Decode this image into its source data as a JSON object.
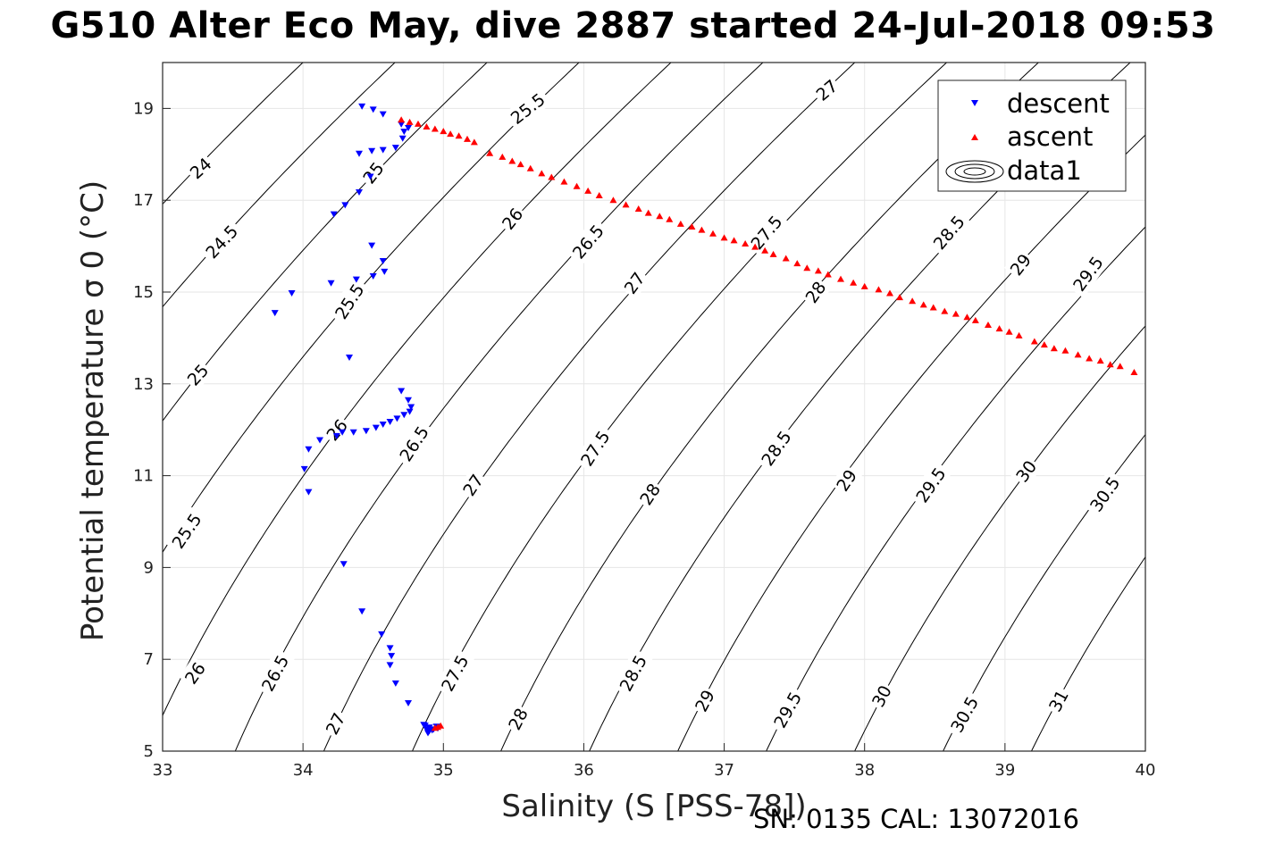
{
  "header": {
    "title": "G510 Alter Eco May, dive 2887 started 24-Jul-2018 09:53"
  },
  "footer": {
    "text": "SN: 0135  CAL: 13072016"
  },
  "chart_data": {
    "type": "scatter",
    "title": "G510 Alter Eco May, dive 2887 started 24-Jul-2018 09:53",
    "xlabel": "Salinity (S [PSS-78])",
    "ylabel": "Potential temperature σ 0 (°C)",
    "xlim": [
      33,
      40
    ],
    "ylim": [
      5,
      20
    ],
    "x_ticks": [
      "33",
      "34",
      "35",
      "36",
      "37",
      "38",
      "39",
      "40"
    ],
    "y_ticks": [
      "5",
      "7",
      "9",
      "11",
      "13",
      "15",
      "17",
      "19"
    ],
    "grid": true,
    "legend_position": "top-right",
    "series": [
      {
        "name": "descent",
        "color": "#0000ff",
        "marker": "triangle-down",
        "points": [
          [
            34.42,
            19.05
          ],
          [
            34.5,
            18.98
          ],
          [
            34.57,
            18.88
          ],
          [
            34.4,
            18.02
          ],
          [
            34.49,
            18.08
          ],
          [
            34.57,
            18.1
          ],
          [
            34.66,
            18.15
          ],
          [
            34.71,
            18.35
          ],
          [
            34.72,
            18.5
          ],
          [
            34.75,
            18.58
          ],
          [
            34.7,
            18.66
          ],
          [
            34.48,
            17.52
          ],
          [
            34.4,
            17.18
          ],
          [
            34.3,
            16.9
          ],
          [
            34.22,
            16.7
          ],
          [
            34.49,
            16.02
          ],
          [
            34.57,
            15.68
          ],
          [
            34.58,
            15.45
          ],
          [
            34.5,
            15.35
          ],
          [
            34.38,
            15.28
          ],
          [
            34.2,
            15.2
          ],
          [
            33.92,
            14.98
          ],
          [
            33.8,
            14.55
          ],
          [
            34.33,
            13.58
          ],
          [
            34.7,
            12.85
          ],
          [
            34.75,
            12.65
          ],
          [
            34.77,
            12.5
          ],
          [
            34.76,
            12.4
          ],
          [
            34.72,
            12.33
          ],
          [
            34.67,
            12.25
          ],
          [
            34.62,
            12.18
          ],
          [
            34.57,
            12.12
          ],
          [
            34.52,
            12.05
          ],
          [
            34.45,
            11.98
          ],
          [
            34.36,
            11.95
          ],
          [
            34.28,
            11.95
          ],
          [
            34.24,
            11.87
          ],
          [
            34.12,
            11.78
          ],
          [
            34.04,
            11.58
          ],
          [
            34.01,
            11.15
          ],
          [
            34.04,
            10.65
          ],
          [
            34.29,
            9.08
          ],
          [
            34.42,
            8.05
          ],
          [
            34.56,
            7.55
          ],
          [
            34.62,
            7.25
          ],
          [
            34.63,
            7.08
          ],
          [
            34.62,
            6.88
          ],
          [
            34.66,
            6.48
          ],
          [
            34.75,
            6.05
          ],
          [
            34.86,
            5.58
          ],
          [
            34.9,
            5.52
          ],
          [
            34.88,
            5.48
          ],
          [
            34.92,
            5.46
          ],
          [
            34.9,
            5.44
          ],
          [
            34.93,
            5.48
          ],
          [
            34.96,
            5.5
          ],
          [
            34.87,
            5.56
          ],
          [
            34.95,
            5.54
          ],
          [
            34.89,
            5.4
          ]
        ]
      },
      {
        "name": "ascent",
        "color": "#ff0000",
        "marker": "triangle-up",
        "points": [
          [
            34.7,
            18.75
          ],
          [
            34.76,
            18.7
          ],
          [
            34.82,
            18.66
          ],
          [
            34.88,
            18.6
          ],
          [
            34.94,
            18.55
          ],
          [
            35.0,
            18.5
          ],
          [
            35.05,
            18.44
          ],
          [
            35.11,
            18.4
          ],
          [
            35.17,
            18.33
          ],
          [
            35.22,
            18.26
          ],
          [
            35.33,
            18.02
          ],
          [
            35.42,
            17.94
          ],
          [
            35.49,
            17.85
          ],
          [
            35.55,
            17.78
          ],
          [
            35.62,
            17.69
          ],
          [
            35.7,
            17.58
          ],
          [
            35.77,
            17.5
          ],
          [
            35.86,
            17.4
          ],
          [
            35.95,
            17.3
          ],
          [
            36.03,
            17.2
          ],
          [
            36.11,
            17.1
          ],
          [
            36.21,
            17.0
          ],
          [
            36.3,
            16.9
          ],
          [
            36.39,
            16.81
          ],
          [
            36.46,
            16.72
          ],
          [
            36.54,
            16.65
          ],
          [
            36.61,
            16.58
          ],
          [
            36.69,
            16.48
          ],
          [
            36.77,
            16.42
          ],
          [
            36.84,
            16.35
          ],
          [
            36.92,
            16.27
          ],
          [
            37.0,
            16.18
          ],
          [
            37.07,
            16.12
          ],
          [
            37.15,
            16.05
          ],
          [
            37.22,
            15.98
          ],
          [
            37.29,
            15.9
          ],
          [
            37.35,
            15.82
          ],
          [
            37.44,
            15.73
          ],
          [
            37.52,
            15.62
          ],
          [
            37.59,
            15.52
          ],
          [
            37.67,
            15.46
          ],
          [
            37.74,
            15.38
          ],
          [
            37.83,
            15.28
          ],
          [
            37.92,
            15.2
          ],
          [
            38.0,
            15.12
          ],
          [
            38.1,
            15.05
          ],
          [
            38.18,
            14.97
          ],
          [
            38.25,
            14.88
          ],
          [
            38.34,
            14.8
          ],
          [
            38.42,
            14.72
          ],
          [
            38.49,
            14.66
          ],
          [
            38.57,
            14.58
          ],
          [
            38.65,
            14.52
          ],
          [
            38.73,
            14.45
          ],
          [
            38.79,
            14.38
          ],
          [
            38.88,
            14.28
          ],
          [
            38.96,
            14.2
          ],
          [
            39.03,
            14.13
          ],
          [
            39.1,
            14.05
          ],
          [
            39.21,
            13.92
          ],
          [
            39.28,
            13.85
          ],
          [
            39.35,
            13.77
          ],
          [
            39.43,
            13.72
          ],
          [
            39.52,
            13.63
          ],
          [
            39.6,
            13.55
          ],
          [
            39.68,
            13.5
          ],
          [
            39.75,
            13.42
          ],
          [
            39.82,
            13.38
          ],
          [
            39.92,
            13.25
          ],
          [
            34.96,
            5.52
          ],
          [
            34.98,
            5.55
          ],
          [
            34.94,
            5.5
          ]
        ]
      },
      {
        "name": "data1",
        "type": "contour",
        "color": "#000000",
        "levels": [
          24,
          24.5,
          25,
          25.5,
          26,
          26.5,
          27,
          27.5,
          28,
          28.5,
          29,
          29.5,
          30,
          30.5,
          31
        ]
      }
    ],
    "contour_labels": [
      {
        "text": "24",
        "x": 33.27,
        "y": 17.7,
        "angle": -42
      },
      {
        "text": "24.5",
        "x": 33.42,
        "y": 16.1,
        "angle": -47
      },
      {
        "text": "25",
        "x": 34.5,
        "y": 17.6,
        "angle": -52
      },
      {
        "text": "25",
        "x": 33.25,
        "y": 13.2,
        "angle": -48
      },
      {
        "text": "25.5",
        "x": 35.6,
        "y": 19.0,
        "angle": -38
      },
      {
        "text": "25.5",
        "x": 34.33,
        "y": 14.8,
        "angle": -57
      },
      {
        "text": "25.5",
        "x": 33.17,
        "y": 9.8,
        "angle": -56
      },
      {
        "text": "26",
        "x": 35.49,
        "y": 16.6,
        "angle": -52
      },
      {
        "text": "26",
        "x": 34.24,
        "y": 12.0,
        "angle": -50
      },
      {
        "text": "26",
        "x": 33.23,
        "y": 6.7,
        "angle": -55
      },
      {
        "text": "26.5",
        "x": 36.03,
        "y": 16.1,
        "angle": -50
      },
      {
        "text": "26.5",
        "x": 34.79,
        "y": 11.7,
        "angle": -57
      },
      {
        "text": "26.5",
        "x": 33.8,
        "y": 6.7,
        "angle": -62
      },
      {
        "text": "27",
        "x": 37.73,
        "y": 19.4,
        "angle": -40
      },
      {
        "text": "27",
        "x": 36.36,
        "y": 15.2,
        "angle": -54
      },
      {
        "text": "27",
        "x": 35.21,
        "y": 10.8,
        "angle": -56
      },
      {
        "text": "27",
        "x": 34.23,
        "y": 5.6,
        "angle": -63
      },
      {
        "text": "27.5",
        "x": 37.3,
        "y": 16.3,
        "angle": -50
      },
      {
        "text": "27.5",
        "x": 36.08,
        "y": 11.6,
        "angle": -57
      },
      {
        "text": "27.5",
        "x": 35.08,
        "y": 6.7,
        "angle": -62
      },
      {
        "text": "28",
        "x": 37.65,
        "y": 15.0,
        "angle": -55
      },
      {
        "text": "28",
        "x": 36.47,
        "y": 10.6,
        "angle": -56
      },
      {
        "text": "28",
        "x": 35.53,
        "y": 5.7,
        "angle": -63
      },
      {
        "text": "28.5",
        "x": 38.6,
        "y": 16.3,
        "angle": -50
      },
      {
        "text": "28.5",
        "x": 37.37,
        "y": 11.6,
        "angle": -55
      },
      {
        "text": "28.5",
        "x": 36.35,
        "y": 6.7,
        "angle": -62
      },
      {
        "text": "29",
        "x": 39.11,
        "y": 15.6,
        "angle": -52
      },
      {
        "text": "29",
        "x": 37.87,
        "y": 10.9,
        "angle": -56
      },
      {
        "text": "29",
        "x": 36.86,
        "y": 6.1,
        "angle": -62
      },
      {
        "text": "29.5",
        "x": 39.59,
        "y": 15.4,
        "angle": -54
      },
      {
        "text": "29.5",
        "x": 38.47,
        "y": 10.8,
        "angle": -55
      },
      {
        "text": "29.5",
        "x": 37.45,
        "y": 5.9,
        "angle": -61
      },
      {
        "text": "30",
        "x": 39.15,
        "y": 11.1,
        "angle": -54
      },
      {
        "text": "30",
        "x": 38.12,
        "y": 6.2,
        "angle": -62
      },
      {
        "text": "30.5",
        "x": 39.71,
        "y": 10.6,
        "angle": -55
      },
      {
        "text": "30.5",
        "x": 38.71,
        "y": 5.8,
        "angle": -61
      },
      {
        "text": "31",
        "x": 39.38,
        "y": 6.1,
        "angle": -62
      }
    ]
  }
}
